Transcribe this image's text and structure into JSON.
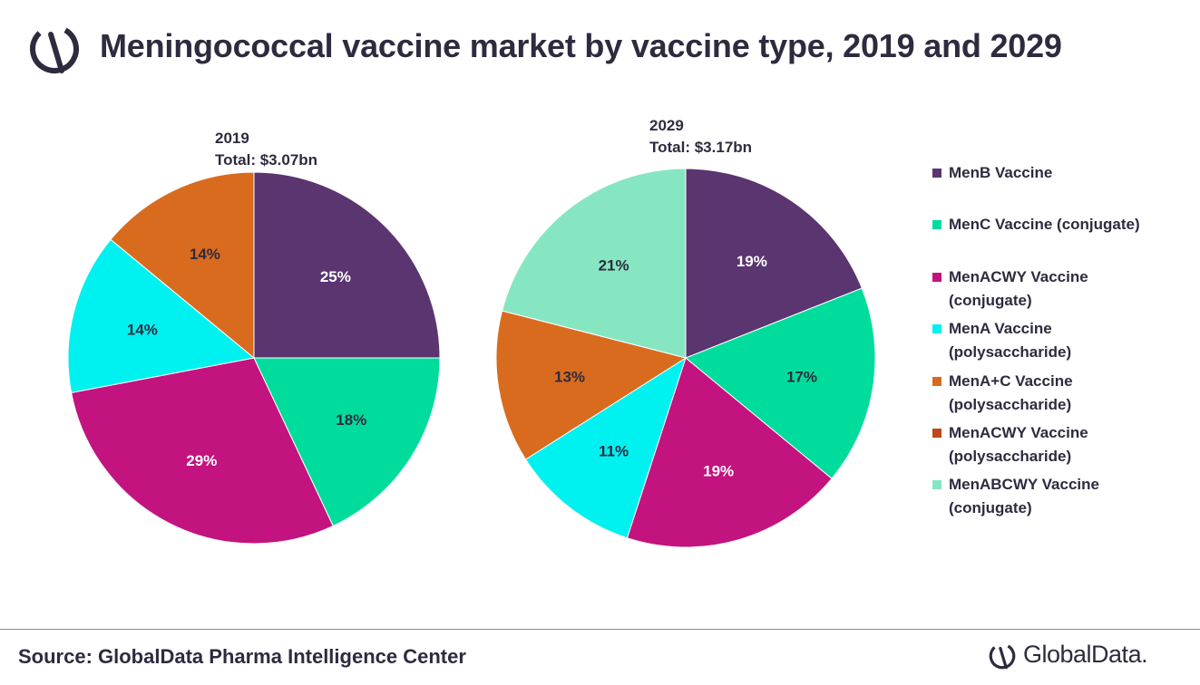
{
  "title": "Meningococcal vaccine market by vaccine type, 2019 and 2029",
  "source": "Source: GlobalData Pharma Intelligence Center",
  "brand": "GlobalData.",
  "legend": [
    {
      "label": "MenB Vaccine",
      "color": "#5a3570"
    },
    {
      "label": "MenC Vaccine (conjugate)",
      "color": "#00dc9c"
    },
    {
      "label": "MenACWY Vaccine (conjugate)",
      "color": "#c3137f"
    },
    {
      "label": "MenA Vaccine (polysaccharide)",
      "color": "#00f2f0"
    },
    {
      "label": "MenA+C Vaccine (polysaccharide)",
      "color": "#d96b1f"
    },
    {
      "label": "MenACWY Vaccine (polysaccharide)",
      "color": "#c0461c"
    },
    {
      "label": "MenABCWY Vaccine (conjugate)",
      "color": "#86e6c2"
    }
  ],
  "chart_data": [
    {
      "type": "pie",
      "year": "2019",
      "total": "Total: $3.07bn",
      "slices": [
        {
          "name": "MenB Vaccine",
          "value": 25,
          "label": "25%",
          "color": "#5a3570",
          "label_color": "#ffffff"
        },
        {
          "name": "MenC Vaccine (conjugate)",
          "value": 18,
          "label": "18%",
          "color": "#00dc9c",
          "label_color": "#2e2b3f"
        },
        {
          "name": "MenACWY Vaccine (conjugate)",
          "value": 29,
          "label": "29%",
          "color": "#c3137f",
          "label_color": "#ffffff"
        },
        {
          "name": "MenA Vaccine (polysaccharide)",
          "value": 14,
          "label": "14%",
          "color": "#00f2f0",
          "label_color": "#2e2b3f"
        },
        {
          "name": "MenA+C Vaccine (polysaccharide)",
          "value": 14,
          "label": "14%",
          "color": "#d96b1f",
          "label_color": "#2e2b3f"
        }
      ]
    },
    {
      "type": "pie",
      "year": "2029",
      "total": "Total: $3.17bn",
      "slices": [
        {
          "name": "MenB Vaccine",
          "value": 19,
          "label": "19%",
          "color": "#5a3570",
          "label_color": "#ffffff"
        },
        {
          "name": "MenC Vaccine (conjugate)",
          "value": 17,
          "label": "17%",
          "color": "#00dc9c",
          "label_color": "#2e2b3f"
        },
        {
          "name": "MenACWY Vaccine (conjugate)",
          "value": 19,
          "label": "19%",
          "color": "#c3137f",
          "label_color": "#ffffff"
        },
        {
          "name": "MenA Vaccine (polysaccharide)",
          "value": 11,
          "label": "11%",
          "color": "#00f2f0",
          "label_color": "#2e2b3f"
        },
        {
          "name": "MenA+C Vaccine (polysaccharide)",
          "value": 13,
          "label": "13%",
          "color": "#d96b1f",
          "label_color": "#2e2b3f"
        },
        {
          "name": "MenABCWY Vaccine (conjugate)",
          "value": 21,
          "label": "21%",
          "color": "#86e6c2",
          "label_color": "#2e2b3f"
        }
      ]
    }
  ]
}
